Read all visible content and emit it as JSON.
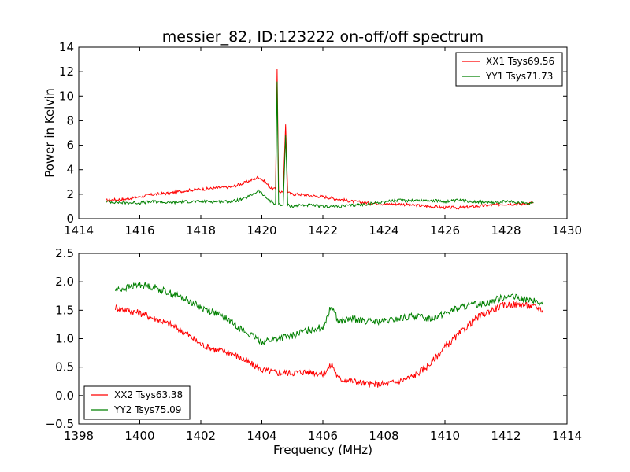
{
  "chart_data": [
    {
      "type": "line",
      "title": "messier_82, ID:123222 on-off/off spectrum",
      "xlabel": "",
      "ylabel": "Power in Kelvin",
      "xlim": [
        1414,
        1430
      ],
      "ylim": [
        0,
        14
      ],
      "xticks": [
        "1414",
        "1416",
        "1418",
        "1420",
        "1422",
        "1424",
        "1426",
        "1428",
        "1430"
      ],
      "yticks": [
        "0",
        "2",
        "4",
        "6",
        "8",
        "10",
        "12",
        "14"
      ],
      "legend_position": "top-right",
      "series": [
        {
          "name": "XX1 Tsys69.56",
          "color": "#ff0000",
          "x": [
            1414.9,
            1415.5,
            1416.0,
            1416.5,
            1417.0,
            1417.5,
            1418.0,
            1418.5,
            1419.0,
            1419.4,
            1419.7,
            1419.9,
            1420.1,
            1420.3,
            1420.45,
            1420.5,
            1420.55,
            1420.6,
            1420.7,
            1420.78,
            1420.85,
            1420.95,
            1421.2,
            1421.5,
            1422.0,
            1422.5,
            1423.0,
            1423.5,
            1424.0,
            1424.5,
            1425.0,
            1425.5,
            1426.0,
            1426.5,
            1427.0,
            1427.5,
            1428.0,
            1428.5,
            1428.9
          ],
          "y": [
            1.5,
            1.6,
            1.8,
            2.0,
            2.1,
            2.3,
            2.4,
            2.5,
            2.6,
            2.9,
            3.2,
            3.4,
            3.0,
            2.5,
            2.4,
            12.2,
            2.3,
            2.2,
            2.2,
            7.7,
            2.2,
            2.0,
            2.0,
            1.9,
            1.8,
            1.6,
            1.4,
            1.3,
            1.2,
            1.2,
            1.1,
            1.0,
            0.9,
            0.9,
            1.0,
            1.1,
            1.2,
            1.2,
            1.3
          ]
        },
        {
          "name": "YY1 Tsys71.73",
          "color": "#008000",
          "x": [
            1414.9,
            1415.5,
            1416.0,
            1416.5,
            1417.0,
            1417.5,
            1418.0,
            1418.5,
            1419.0,
            1419.4,
            1419.7,
            1419.9,
            1420.1,
            1420.3,
            1420.45,
            1420.5,
            1420.55,
            1420.6,
            1420.7,
            1420.78,
            1420.85,
            1420.95,
            1421.2,
            1421.5,
            1422.0,
            1422.5,
            1423.0,
            1423.5,
            1424.0,
            1424.5,
            1425.0,
            1425.5,
            1426.0,
            1426.5,
            1427.0,
            1427.5,
            1428.0,
            1428.5,
            1428.9
          ],
          "y": [
            1.4,
            1.3,
            1.3,
            1.4,
            1.3,
            1.4,
            1.4,
            1.4,
            1.4,
            1.6,
            2.0,
            2.3,
            1.8,
            1.4,
            1.2,
            11.2,
            1.2,
            1.1,
            1.1,
            6.8,
            1.1,
            1.0,
            1.1,
            1.1,
            1.0,
            1.0,
            1.1,
            1.2,
            1.4,
            1.5,
            1.5,
            1.5,
            1.4,
            1.5,
            1.4,
            1.3,
            1.4,
            1.3,
            1.3
          ]
        }
      ]
    },
    {
      "type": "line",
      "title": "",
      "xlabel": "Frequency (MHz)",
      "ylabel": "",
      "xlim": [
        1398,
        1414
      ],
      "ylim": [
        -0.5,
        2.5
      ],
      "xticks": [
        "1398",
        "1400",
        "1402",
        "1404",
        "1406",
        "1408",
        "1410",
        "1412",
        "1414"
      ],
      "yticks": [
        "−0.5",
        "0.0",
        "0.5",
        "1.0",
        "1.5",
        "2.0",
        "2.5"
      ],
      "legend_position": "bottom-left",
      "series": [
        {
          "name": "XX2 Tsys63.38",
          "color": "#ff0000",
          "x": [
            1399.2,
            1399.6,
            1400.0,
            1400.5,
            1401.0,
            1401.5,
            1402.0,
            1402.5,
            1403.0,
            1403.5,
            1404.0,
            1404.5,
            1405.0,
            1405.5,
            1406.0,
            1406.3,
            1406.5,
            1407.0,
            1407.5,
            1408.0,
            1408.5,
            1409.0,
            1409.5,
            1410.0,
            1410.5,
            1411.0,
            1411.5,
            1412.0,
            1412.5,
            1413.0,
            1413.2
          ],
          "y": [
            1.55,
            1.5,
            1.45,
            1.35,
            1.25,
            1.1,
            0.9,
            0.8,
            0.75,
            0.6,
            0.45,
            0.4,
            0.4,
            0.42,
            0.38,
            0.55,
            0.3,
            0.25,
            0.2,
            0.2,
            0.25,
            0.35,
            0.55,
            0.85,
            1.1,
            1.35,
            1.5,
            1.6,
            1.6,
            1.55,
            1.5
          ]
        },
        {
          "name": "YY2 Tsys75.09",
          "color": "#008000",
          "x": [
            1399.2,
            1399.6,
            1400.0,
            1400.5,
            1401.0,
            1401.5,
            1402.0,
            1402.5,
            1403.0,
            1403.5,
            1404.0,
            1404.5,
            1405.0,
            1405.5,
            1406.0,
            1406.3,
            1406.5,
            1407.0,
            1407.5,
            1408.0,
            1408.5,
            1409.0,
            1409.5,
            1410.0,
            1410.5,
            1411.0,
            1411.5,
            1412.0,
            1412.5,
            1413.0,
            1413.2
          ],
          "y": [
            1.85,
            1.9,
            1.95,
            1.9,
            1.8,
            1.7,
            1.55,
            1.45,
            1.3,
            1.1,
            0.95,
            1.0,
            1.05,
            1.15,
            1.2,
            1.6,
            1.3,
            1.35,
            1.3,
            1.3,
            1.35,
            1.4,
            1.35,
            1.45,
            1.55,
            1.6,
            1.65,
            1.75,
            1.7,
            1.65,
            1.6
          ]
        }
      ]
    }
  ]
}
